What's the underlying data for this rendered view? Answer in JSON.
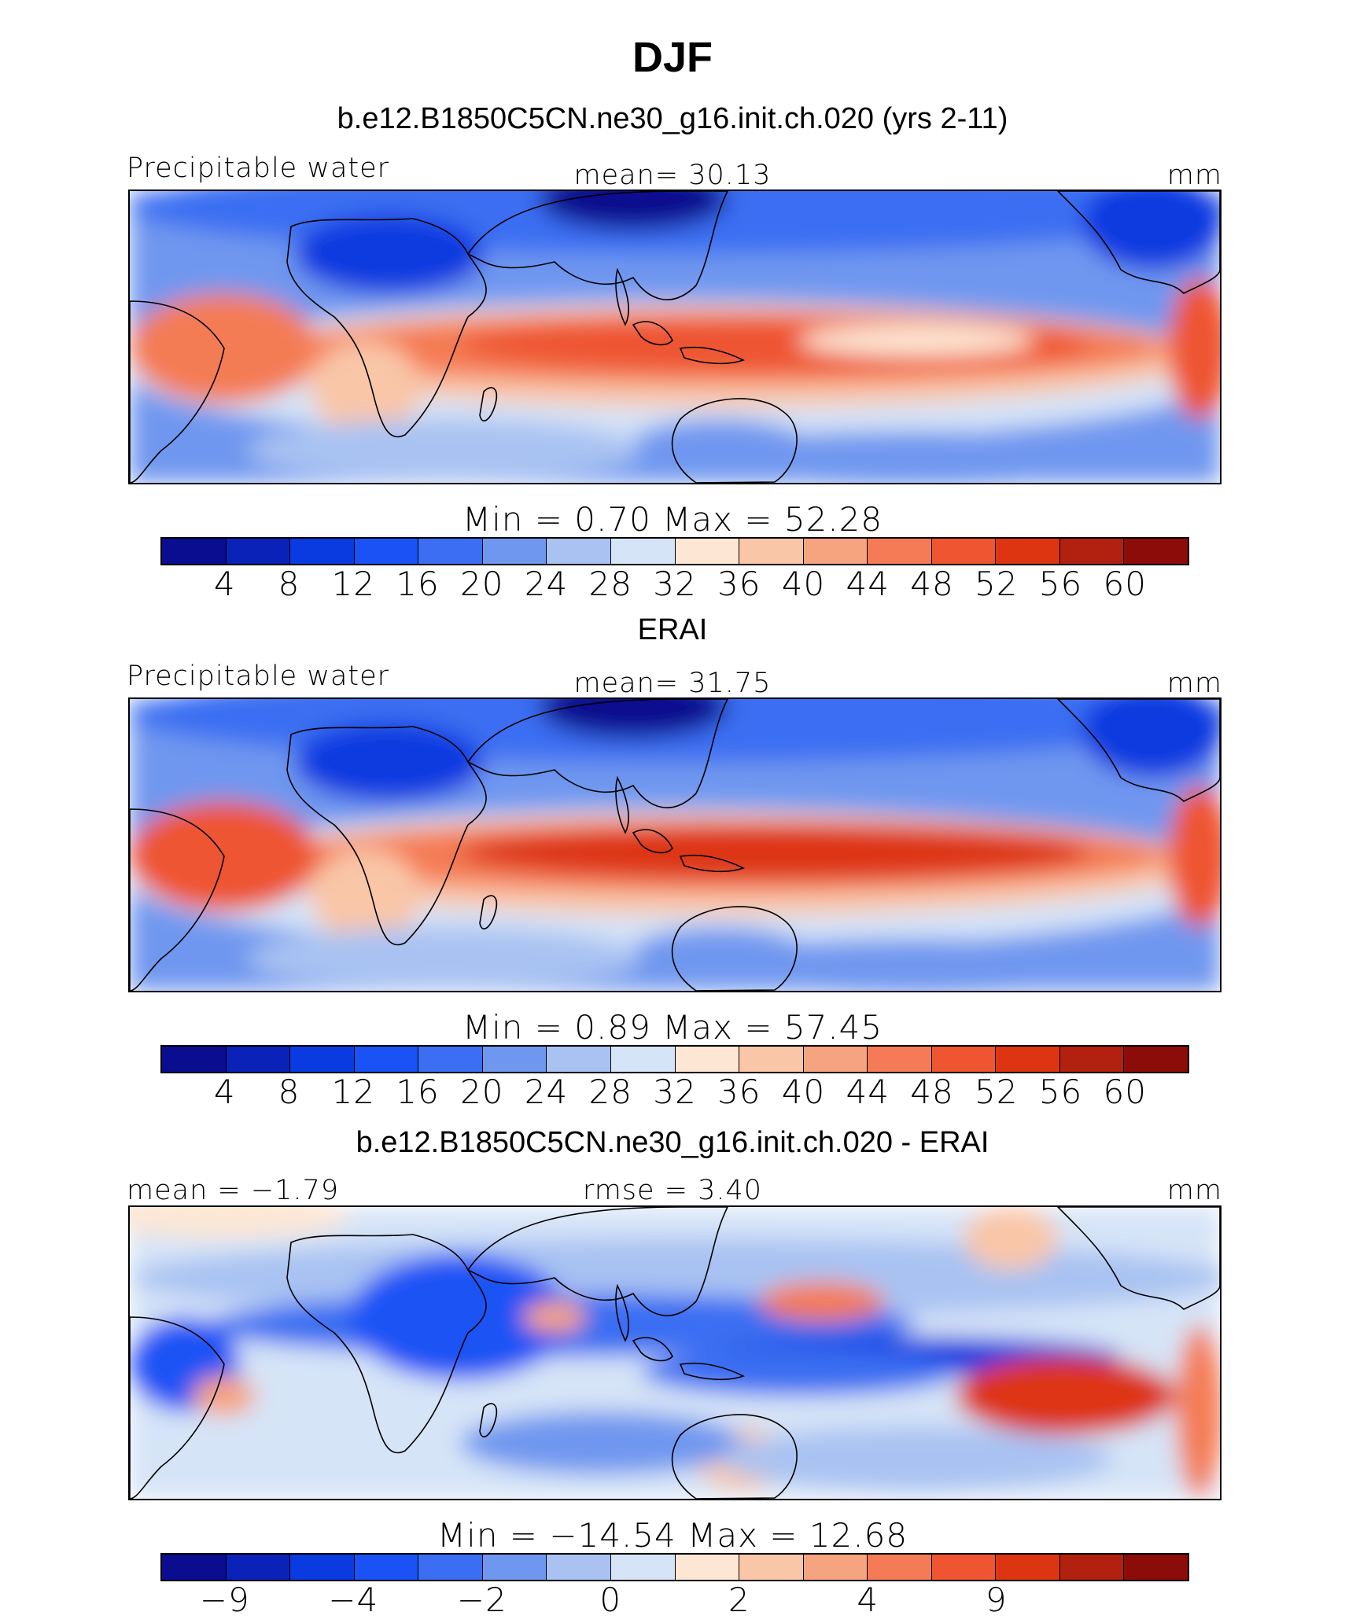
{
  "title": "DJF",
  "colors": [
    "#0a0d8f",
    "#0a22b8",
    "#0a3be0",
    "#1a52f5",
    "#3b6ef2",
    "#6f97ef",
    "#a9c2f2",
    "#d6e4f7",
    "#fde7d4",
    "#f9c6a8",
    "#f6a37f",
    "#f47b55",
    "#ee5530",
    "#dd3412",
    "#b2200f",
    "#8c0c0a"
  ],
  "panels": [
    {
      "subtitle": "b.e12.B1850C5CN.ne30_g16.init.ch.020 (yrs 2-11)",
      "left_label": "Precipitable water",
      "center_label": "mean=   30.13",
      "right_label": "mm",
      "minmax": "Min  =     0.70  Max  =    52.28",
      "ticks": [
        "4",
        "8",
        "12",
        "16",
        "20",
        "24",
        "28",
        "32",
        "36",
        "40",
        "44",
        "48",
        "52",
        "56",
        "60"
      ],
      "variant": "model"
    },
    {
      "subtitle": "ERAI",
      "left_label": "Precipitable water",
      "center_label": "mean=   31.75",
      "right_label": "mm",
      "minmax": "Min  =     0.89  Max  =    57.45",
      "ticks": [
        "4",
        "8",
        "12",
        "16",
        "20",
        "24",
        "28",
        "32",
        "36",
        "40",
        "44",
        "48",
        "52",
        "56",
        "60"
      ],
      "variant": "obs"
    },
    {
      "subtitle": "b.e12.B1850C5CN.ne30_g16.init.ch.020 - ERAI",
      "left_label": "mean  =   −1.79",
      "center_label": "rmse  =     3.40",
      "right_label": "mm",
      "minmax": "Min  =  −14.54  Max  =    12.68",
      "ticks": [
        "−9",
        "",
        "−4",
        "",
        "−2",
        "",
        "0",
        "",
        "2",
        "",
        "4",
        "",
        "9",
        ""
      ],
      "variant": "diff"
    }
  ]
}
